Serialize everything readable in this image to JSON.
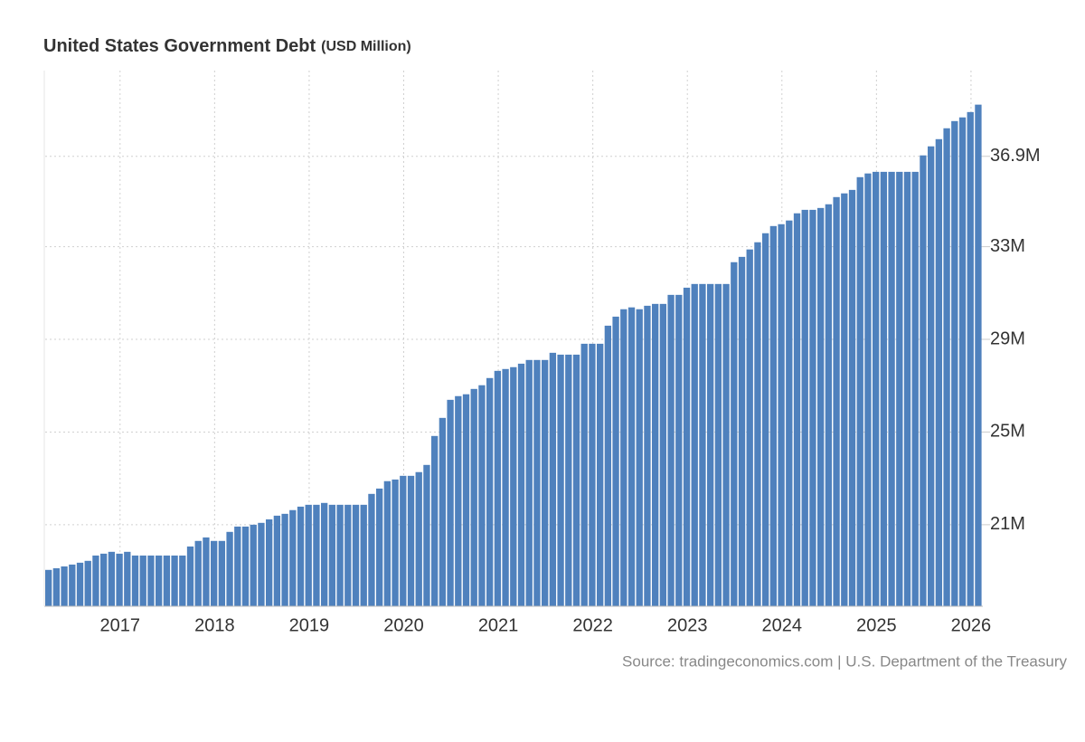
{
  "chart_data": {
    "type": "bar",
    "title": "United States Government Debt",
    "subtitle": "(USD Million)",
    "source": "Source: tradingeconomics.com | U.S. Department of the Treasury",
    "color": "#4f81bd",
    "grid": true,
    "yaxis_side": "right",
    "categories": [
      null,
      null,
      null,
      null,
      null,
      null,
      null,
      null,
      null,
      "2017",
      null,
      null,
      null,
      null,
      null,
      null,
      null,
      null,
      null,
      null,
      null,
      "2018",
      null,
      null,
      null,
      null,
      null,
      null,
      null,
      null,
      null,
      null,
      null,
      "2019",
      null,
      null,
      null,
      null,
      null,
      null,
      null,
      null,
      null,
      null,
      null,
      "2020",
      null,
      null,
      null,
      null,
      null,
      null,
      null,
      null,
      null,
      null,
      null,
      "2021",
      null,
      null,
      null,
      null,
      null,
      null,
      null,
      null,
      null,
      null,
      null,
      "2022",
      null,
      null,
      null,
      null,
      null,
      null,
      null,
      null,
      null,
      null,
      null,
      "2023",
      null,
      null,
      null,
      null,
      null,
      null,
      null,
      null,
      null,
      null,
      null,
      "2024",
      null,
      null,
      null,
      null,
      null,
      null,
      null,
      null,
      null,
      null,
      null,
      "2025",
      null,
      null,
      null,
      null,
      null,
      null,
      null,
      null,
      null,
      null,
      null,
      "2026",
      null
    ],
    "values": [
      19050000,
      19120000,
      19200000,
      19280000,
      19360000,
      19440000,
      19670000,
      19750000,
      19830000,
      19750000,
      19830000,
      19670000,
      19670000,
      19670000,
      19670000,
      19670000,
      19670000,
      19670000,
      20060000,
      20300000,
      20450000,
      20300000,
      20300000,
      20690000,
      20920000,
      20920000,
      21000000,
      21080000,
      21230000,
      21390000,
      21470000,
      21630000,
      21780000,
      21860000,
      21860000,
      21940000,
      21860000,
      21860000,
      21860000,
      21860000,
      21860000,
      22330000,
      22560000,
      22880000,
      22950000,
      23110000,
      23110000,
      23270000,
      23580000,
      24830000,
      25610000,
      26390000,
      26550000,
      26630000,
      26860000,
      27020000,
      27330000,
      27640000,
      27720000,
      27800000,
      27950000,
      28110000,
      28110000,
      28110000,
      28420000,
      28340000,
      28340000,
      28340000,
      28810000,
      28810000,
      28810000,
      29590000,
      29980000,
      30300000,
      30380000,
      30300000,
      30450000,
      30530000,
      30530000,
      30920000,
      30920000,
      31230000,
      31390000,
      31390000,
      31390000,
      31390000,
      31390000,
      32330000,
      32560000,
      32880000,
      33190000,
      33580000,
      33890000,
      33970000,
      34130000,
      34440000,
      34590000,
      34590000,
      34670000,
      34830000,
      35140000,
      35300000,
      35450000,
      36000000,
      36160000,
      36230000,
      36230000,
      36230000,
      36230000,
      36230000,
      36230000,
      36940000,
      37330000,
      37640000,
      38110000,
      38420000,
      38580000,
      38810000,
      39130000
    ],
    "ylim": [
      17480000,
      40600000
    ],
    "yticks": [
      {
        "value": 21000000,
        "label": "21M"
      },
      {
        "value": 25000000,
        "label": "25M"
      },
      {
        "value": 29000000,
        "label": "29M"
      },
      {
        "value": 33000000,
        "label": "33M"
      },
      {
        "value": 36900000,
        "label": "36.9M"
      }
    ]
  }
}
